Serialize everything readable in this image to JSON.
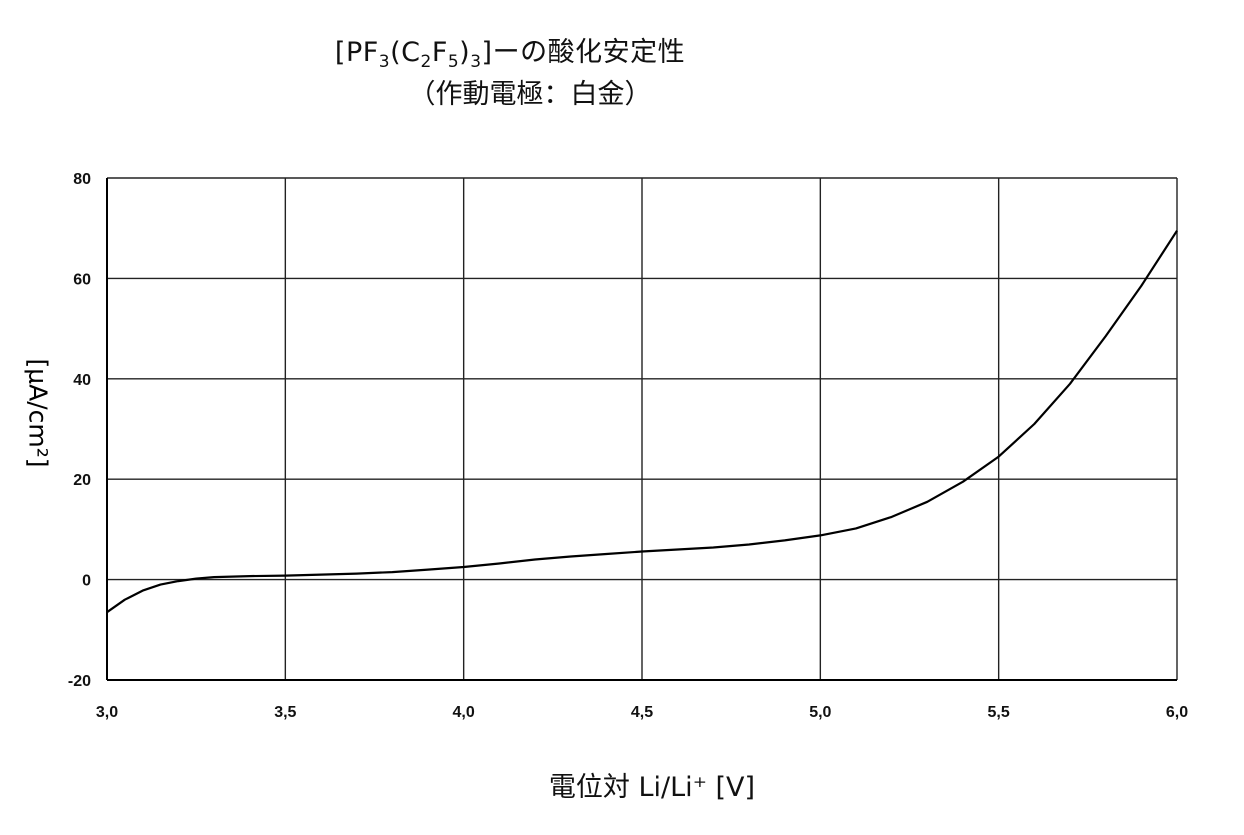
{
  "title_line1_parts": {
    "a": "[PF",
    "s1": "3",
    "b": "(C",
    "s2": "2",
    "c": "F",
    "s3": "5",
    "d": ")",
    "s4": "3",
    "e": "]ーの酸化安定性"
  },
  "title_line2": "（作動電極：白金）",
  "xlabel": "電位対 Li/Li⁺ [V]",
  "ylabel": "[μA/cm²]",
  "chart_data": {
    "type": "line",
    "title": "[PF3(C2F5)3]ーの酸化安定性 （作動電極：白金）",
    "xlabel": "電位対 Li/Li⁺ [V]",
    "ylabel": "[μA/cm²]",
    "xlim": [
      3.0,
      6.0
    ],
    "ylim": [
      -20,
      80
    ],
    "xticks": [
      "3,0",
      "3,5",
      "4,0",
      "4,5",
      "5,0",
      "5,5",
      "6,0"
    ],
    "xtick_values": [
      3.0,
      3.5,
      4.0,
      4.5,
      5.0,
      5.5,
      6.0
    ],
    "yticks": [
      "-20",
      "0",
      "20",
      "40",
      "60",
      "80"
    ],
    "ytick_values": [
      -20,
      0,
      20,
      40,
      60,
      80
    ],
    "grid": true,
    "series": [
      {
        "color": "#000000",
        "x": [
          3.0,
          3.05,
          3.1,
          3.15,
          3.2,
          3.25,
          3.3,
          3.4,
          3.5,
          3.6,
          3.7,
          3.8,
          3.9,
          4.0,
          4.1,
          4.2,
          4.3,
          4.4,
          4.5,
          4.6,
          4.7,
          4.8,
          4.9,
          5.0,
          5.1,
          5.2,
          5.3,
          5.4,
          5.5,
          5.6,
          5.7,
          5.8,
          5.9,
          6.0
        ],
        "y": [
          -6.5,
          -4.0,
          -2.2,
          -1.0,
          -0.3,
          0.2,
          0.5,
          0.7,
          0.8,
          1.0,
          1.2,
          1.5,
          2.0,
          2.5,
          3.2,
          4.0,
          4.6,
          5.1,
          5.6,
          6.0,
          6.4,
          7.0,
          7.8,
          8.8,
          10.2,
          12.5,
          15.5,
          19.5,
          24.5,
          31.0,
          39.0,
          48.5,
          58.5,
          69.5
        ]
      }
    ]
  }
}
